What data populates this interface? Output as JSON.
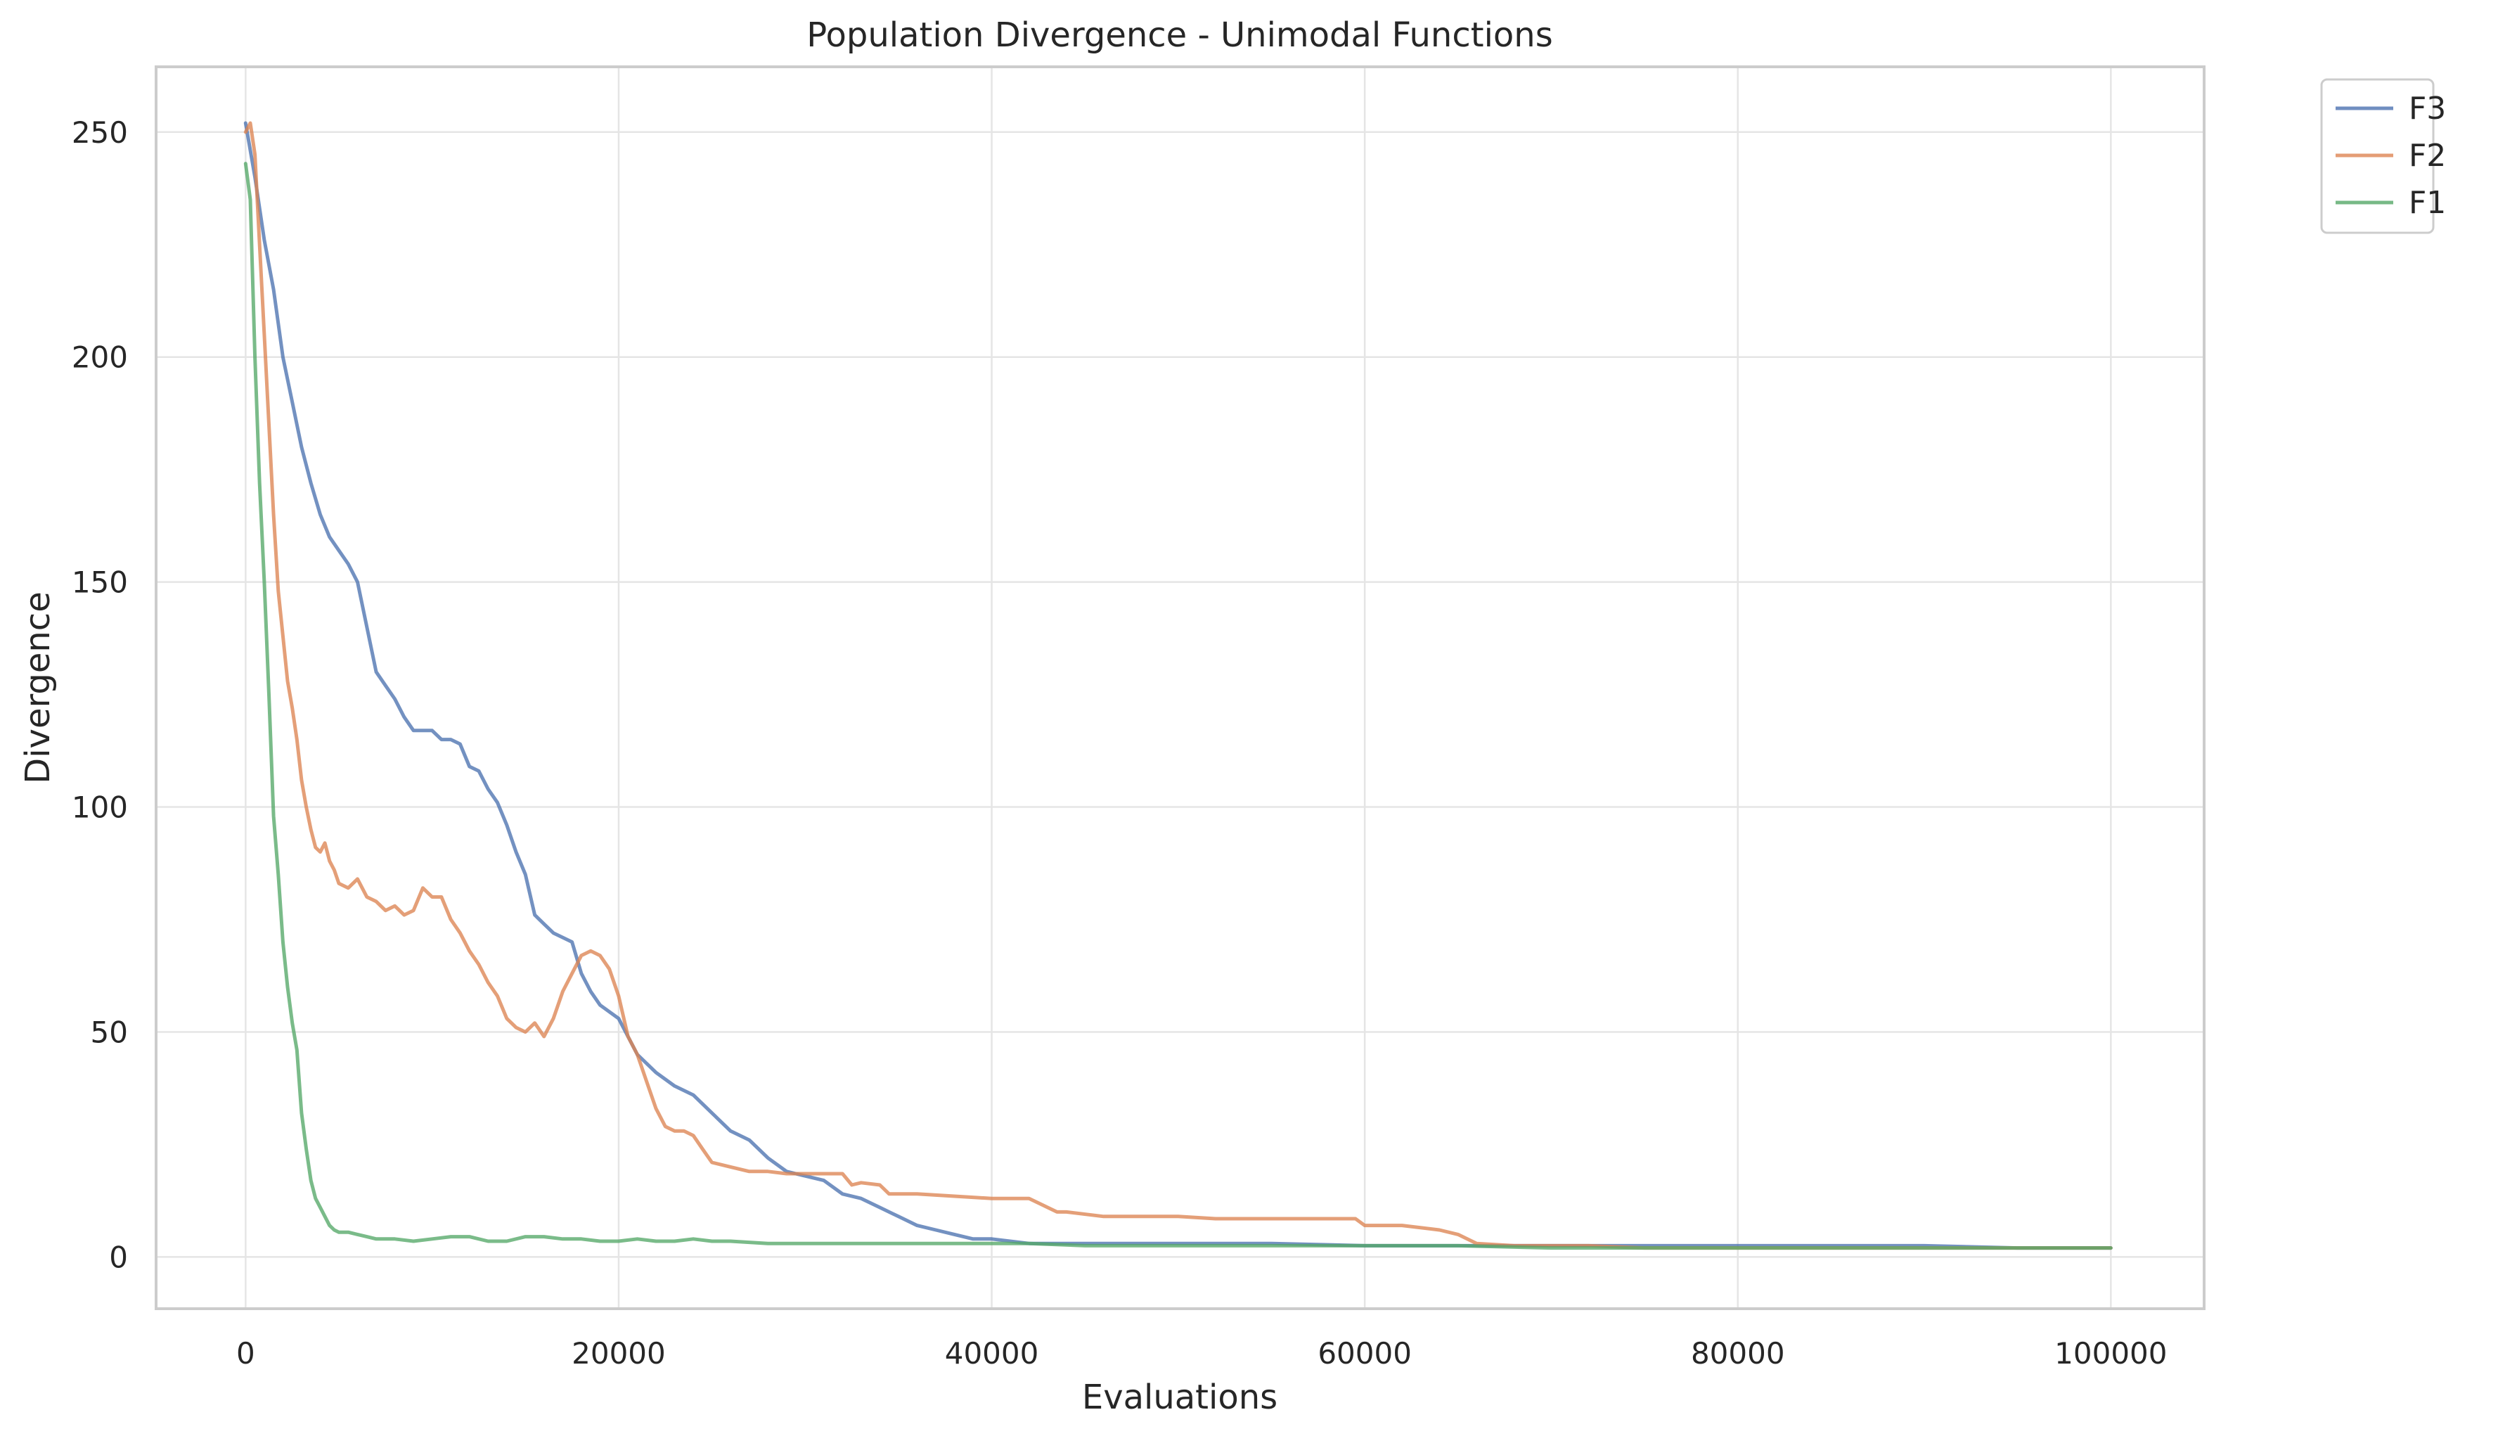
{
  "chart_data": {
    "type": "line",
    "title": "Population Divergence - Unimodal Functions",
    "xlabel": "Evaluations",
    "ylabel": "Divergence",
    "xlim": [
      -4800,
      105000
    ],
    "ylim": [
      -11.5,
      264.5
    ],
    "xticks": [
      0,
      20000,
      40000,
      60000,
      80000,
      100000
    ],
    "yticks": [
      0,
      50,
      100,
      150,
      200,
      250
    ],
    "grid": true,
    "legend_position": "outside-top-right",
    "series": [
      {
        "name": "F3",
        "color": "#4c72b0",
        "points": [
          [
            0,
            252
          ],
          [
            500,
            240
          ],
          [
            1000,
            226
          ],
          [
            1500,
            215
          ],
          [
            2000,
            200
          ],
          [
            2500,
            190
          ],
          [
            3000,
            180
          ],
          [
            3500,
            172
          ],
          [
            4000,
            165
          ],
          [
            4500,
            160
          ],
          [
            5000,
            157
          ],
          [
            5500,
            154
          ],
          [
            6000,
            150
          ],
          [
            6500,
            140
          ],
          [
            7000,
            130
          ],
          [
            7500,
            127
          ],
          [
            8000,
            124
          ],
          [
            8500,
            120
          ],
          [
            9000,
            117
          ],
          [
            9500,
            117
          ],
          [
            10000,
            117
          ],
          [
            10500,
            115
          ],
          [
            11000,
            115
          ],
          [
            11500,
            114
          ],
          [
            12000,
            109
          ],
          [
            12500,
            108
          ],
          [
            13000,
            104
          ],
          [
            13500,
            101
          ],
          [
            14000,
            96
          ],
          [
            14500,
            90
          ],
          [
            15000,
            85
          ],
          [
            15500,
            76
          ],
          [
            16000,
            74
          ],
          [
            16500,
            72
          ],
          [
            17000,
            71
          ],
          [
            17500,
            70
          ],
          [
            18000,
            63
          ],
          [
            18500,
            59
          ],
          [
            19000,
            56
          ],
          [
            20000,
            53
          ],
          [
            21000,
            45
          ],
          [
            22000,
            41
          ],
          [
            23000,
            38
          ],
          [
            24000,
            36
          ],
          [
            25000,
            32
          ],
          [
            26000,
            28
          ],
          [
            27000,
            26
          ],
          [
            28000,
            22
          ],
          [
            29000,
            19
          ],
          [
            30000,
            18
          ],
          [
            31000,
            17
          ],
          [
            32000,
            14
          ],
          [
            33000,
            13
          ],
          [
            34000,
            11
          ],
          [
            35000,
            9
          ],
          [
            36000,
            7
          ],
          [
            37000,
            6
          ],
          [
            38000,
            5
          ],
          [
            39000,
            4
          ],
          [
            40000,
            4
          ],
          [
            42000,
            3
          ],
          [
            45000,
            3
          ],
          [
            48000,
            3
          ],
          [
            50000,
            3
          ],
          [
            55000,
            3
          ],
          [
            60000,
            2.5
          ],
          [
            65000,
            2.5
          ],
          [
            70000,
            2.5
          ],
          [
            75000,
            2.5
          ],
          [
            80000,
            2.5
          ],
          [
            85000,
            2.5
          ],
          [
            90000,
            2.5
          ],
          [
            95000,
            2
          ],
          [
            100000,
            2
          ]
        ]
      },
      {
        "name": "F2",
        "color": "#dd8452",
        "points": [
          [
            0,
            250
          ],
          [
            250,
            252
          ],
          [
            500,
            245
          ],
          [
            750,
            225
          ],
          [
            1000,
            205
          ],
          [
            1250,
            185
          ],
          [
            1500,
            165
          ],
          [
            1750,
            148
          ],
          [
            2000,
            138
          ],
          [
            2250,
            128
          ],
          [
            2500,
            122
          ],
          [
            2750,
            115
          ],
          [
            3000,
            106
          ],
          [
            3250,
            100
          ],
          [
            3500,
            95
          ],
          [
            3750,
            91
          ],
          [
            4000,
            90
          ],
          [
            4250,
            92
          ],
          [
            4500,
            88
          ],
          [
            4750,
            86
          ],
          [
            5000,
            83
          ],
          [
            5500,
            82
          ],
          [
            6000,
            84
          ],
          [
            6500,
            80
          ],
          [
            7000,
            79
          ],
          [
            7500,
            77
          ],
          [
            8000,
            78
          ],
          [
            8500,
            76
          ],
          [
            9000,
            77
          ],
          [
            9500,
            82
          ],
          [
            10000,
            80
          ],
          [
            10500,
            80
          ],
          [
            11000,
            75
          ],
          [
            11500,
            72
          ],
          [
            12000,
            68
          ],
          [
            12500,
            65
          ],
          [
            13000,
            61
          ],
          [
            13500,
            58
          ],
          [
            14000,
            53
          ],
          [
            14500,
            51
          ],
          [
            15000,
            50
          ],
          [
            15500,
            52
          ],
          [
            16000,
            49
          ],
          [
            16500,
            53
          ],
          [
            17000,
            59
          ],
          [
            17500,
            63
          ],
          [
            18000,
            67
          ],
          [
            18500,
            68
          ],
          [
            19000,
            67
          ],
          [
            19500,
            64
          ],
          [
            20000,
            58
          ],
          [
            20500,
            49
          ],
          [
            21000,
            45
          ],
          [
            21500,
            39
          ],
          [
            22000,
            33
          ],
          [
            22500,
            29
          ],
          [
            23000,
            28
          ],
          [
            23500,
            28
          ],
          [
            24000,
            27
          ],
          [
            24500,
            24
          ],
          [
            25000,
            21
          ],
          [
            26000,
            20
          ],
          [
            27000,
            19
          ],
          [
            28000,
            19
          ],
          [
            29000,
            18.5
          ],
          [
            30000,
            18.5
          ],
          [
            31000,
            18.5
          ],
          [
            32000,
            18.5
          ],
          [
            32500,
            16
          ],
          [
            33000,
            16.5
          ],
          [
            34000,
            16
          ],
          [
            34500,
            14
          ],
          [
            35000,
            14
          ],
          [
            36000,
            14
          ],
          [
            38000,
            13.5
          ],
          [
            40000,
            13
          ],
          [
            42000,
            13
          ],
          [
            42500,
            12
          ],
          [
            43000,
            11
          ],
          [
            43500,
            10
          ],
          [
            44000,
            10
          ],
          [
            46000,
            9
          ],
          [
            48000,
            9
          ],
          [
            50000,
            9
          ],
          [
            52000,
            8.5
          ],
          [
            54000,
            8.5
          ],
          [
            56000,
            8.5
          ],
          [
            58000,
            8.5
          ],
          [
            59500,
            8.5
          ],
          [
            60000,
            7
          ],
          [
            62000,
            7
          ],
          [
            64000,
            6
          ],
          [
            65000,
            5
          ],
          [
            66000,
            3
          ],
          [
            68000,
            2.5
          ],
          [
            70000,
            2.5
          ],
          [
            72000,
            2.5
          ],
          [
            75000,
            2
          ],
          [
            80000,
            2
          ],
          [
            85000,
            2
          ],
          [
            90000,
            2
          ],
          [
            95000,
            2
          ],
          [
            100000,
            2
          ]
        ]
      },
      {
        "name": "F1",
        "color": "#55a868",
        "points": [
          [
            0,
            243
          ],
          [
            250,
            235
          ],
          [
            500,
            200
          ],
          [
            750,
            172
          ],
          [
            1000,
            150
          ],
          [
            1250,
            125
          ],
          [
            1500,
            98
          ],
          [
            1750,
            85
          ],
          [
            2000,
            70
          ],
          [
            2250,
            60
          ],
          [
            2500,
            52
          ],
          [
            2750,
            46
          ],
          [
            3000,
            32
          ],
          [
            3250,
            24
          ],
          [
            3500,
            17
          ],
          [
            3750,
            13
          ],
          [
            4000,
            11
          ],
          [
            4250,
            9
          ],
          [
            4500,
            7
          ],
          [
            4750,
            6
          ],
          [
            5000,
            5.5
          ],
          [
            5500,
            5.5
          ],
          [
            6000,
            5
          ],
          [
            6500,
            4.5
          ],
          [
            7000,
            4
          ],
          [
            8000,
            4
          ],
          [
            9000,
            3.5
          ],
          [
            10000,
            4
          ],
          [
            11000,
            4.5
          ],
          [
            12000,
            4.5
          ],
          [
            13000,
            3.5
          ],
          [
            14000,
            3.5
          ],
          [
            15000,
            4.5
          ],
          [
            16000,
            4.5
          ],
          [
            17000,
            4
          ],
          [
            18000,
            4
          ],
          [
            19000,
            3.5
          ],
          [
            20000,
            3.5
          ],
          [
            21000,
            4
          ],
          [
            22000,
            3.5
          ],
          [
            23000,
            3.5
          ],
          [
            24000,
            4
          ],
          [
            25000,
            3.5
          ],
          [
            26000,
            3.5
          ],
          [
            28000,
            3
          ],
          [
            30000,
            3
          ],
          [
            32000,
            3
          ],
          [
            34000,
            3
          ],
          [
            36000,
            3
          ],
          [
            38000,
            3
          ],
          [
            40000,
            3
          ],
          [
            42000,
            3
          ],
          [
            45000,
            2.5
          ],
          [
            50000,
            2.5
          ],
          [
            55000,
            2.5
          ],
          [
            60000,
            2.5
          ],
          [
            65000,
            2.5
          ],
          [
            70000,
            2
          ],
          [
            75000,
            2
          ],
          [
            80000,
            2
          ],
          [
            85000,
            2
          ],
          [
            90000,
            2
          ],
          [
            95000,
            2
          ],
          [
            100000,
            2
          ]
        ]
      }
    ]
  }
}
